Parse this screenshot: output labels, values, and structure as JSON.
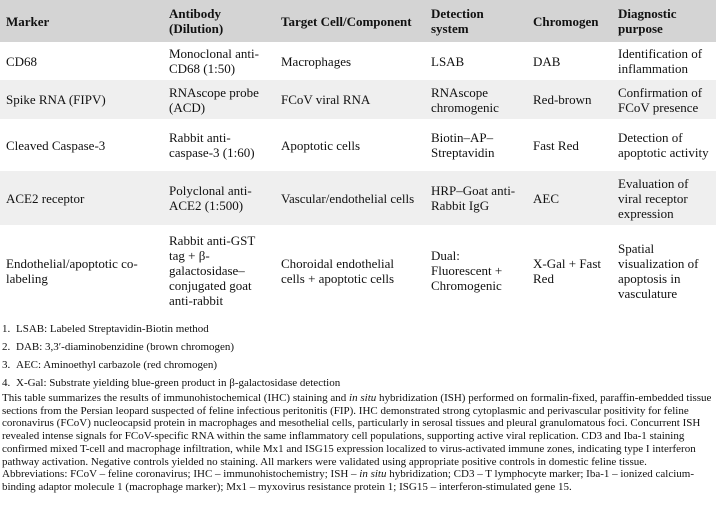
{
  "table": {
    "header": [
      "Marker",
      "Antibody (Dilution)",
      "Target Cell/Component",
      "Detection system",
      "Chromogen",
      "Diagnostic purpose"
    ],
    "rows": [
      [
        "CD68",
        "Monoclonal anti-CD68 (1:50)",
        "Macrophages",
        "LSAB",
        "DAB",
        "Identification of inflammation"
      ],
      [
        "Spike RNA (FIPV)",
        "RNAscope probe (ACD)",
        "FCoV viral RNA",
        "RNAscope chromogenic",
        "Red-brown",
        "Confirmation of FCoV presence"
      ],
      [
        "Cleaved Caspase-3",
        "Rabbit anti-caspase-3 (1:60)",
        "Apoptotic cells",
        "Biotin–AP–Streptavidin",
        "Fast Red",
        "Detection of apoptotic activity"
      ],
      [
        "ACE2 receptor",
        "Polyclonal anti-ACE2 (1:500)",
        "Vascular/endothelial cells",
        "HRP–Goat anti-Rabbit IgG",
        "AEC",
        "Evaluation of viral receptor expression"
      ],
      [
        "Endothelial/apoptotic co-labeling",
        "Rabbit anti-GST tag + β-galactosidase–conjugated goat anti-rabbit",
        "Choroidal endothelial cells + apoptotic cells",
        "Dual: Fluorescent + Chromogenic",
        "X-Gal + Fast Red",
        "Spatial visualization of apoptosis in vasculature"
      ]
    ]
  },
  "footnotes": [
    {
      "number": "1.",
      "text": "LSAB: Labeled Streptavidin-Biotin method"
    },
    {
      "number": "2.",
      "text": "DAB: 3,3′-diaminobenzidine (brown chromogen)"
    },
    {
      "number": "3.",
      "text": "AEC: Aminoethyl carbazole (red chromogen)"
    },
    {
      "number": "4.",
      "text": "X-Gal: Substrate yielding blue-green product in β-galactosidase detection"
    }
  ],
  "caption": [
    {
      "text": "This table summarizes the results of immunohistochemical (IHC) staining and ",
      "italic": false
    },
    {
      "text": "in situ",
      "italic": true
    },
    {
      "text": " hybridization (ISH) performed on formalin-fixed, paraffin-embedded tissue sections from the Persian leopard suspected of feline infectious peritonitis (FIP). IHC demonstrated strong cytoplasmic and perivascular positivity for feline coronavirus (FCoV) nucleocapsid protein in macrophages and mesothelial cells, particularly in serosal tissues and pleural granulomatous foci. Concurrent ISH revealed intense signals for FCoV-specific RNA within the same inflammatory cell populations, supporting active viral replication. CD3 and Iba-1 staining confirmed mixed T-cell and macrophage infiltration, while Mx1 and ISG15 expression localized to virus-activated immune zones, indicating type I interferon pathway activation. Negative controls yielded no staining. All markers were validated using appropriate positive controls in domestic feline tissue. Abbreviations: FCoV – feline coronavirus; IHC – immunohistochemistry; ISH – ",
      "italic": false
    },
    {
      "text": "in situ",
      "italic": true
    },
    {
      "text": " hybridization; CD3 – T lymphocyte marker; Iba-1 – ionized calcium-binding adaptor molecule 1 (macrophage marker); Mx1 – myxovirus resistance protein 1; ISG15 – interferon-stimulated gene 15.",
      "italic": false
    }
  ]
}
